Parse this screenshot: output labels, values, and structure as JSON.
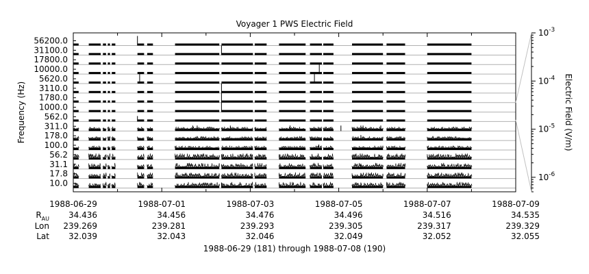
{
  "chart_data": {
    "type": "line",
    "title": "Voyager 1 PWS Electric Field",
    "ylabel": "Frequency (Hz)",
    "y2label": "Electric Field (V/m)",
    "xlim": [
      "1988-06-29",
      "1988-07-09"
    ],
    "x_tick_labels": [
      "1988-06-29",
      "1988-07-01",
      "1988-07-03",
      "1988-07-05",
      "1988-07-07",
      "1988-07-09"
    ],
    "channels_hz": [
      10.0,
      17.8,
      31.1,
      56.2,
      100.0,
      178.0,
      311.0,
      562.0,
      1000.0,
      1780.0,
      3110.0,
      5620.0,
      10000.0,
      17800.0,
      31100.0,
      56200.0
    ],
    "channel_tick_labels": [
      "10.0",
      "17.8",
      "31.1",
      "56.2",
      "100.0",
      "178.0",
      "311.0",
      "562.0",
      "1000.0",
      "1780.0",
      "3110.0",
      "5620.0",
      "10000.0",
      "17800.0",
      "31100.0",
      "56200.0"
    ],
    "y2_scale": "log",
    "y2_range": [
      5e-07,
      0.001
    ],
    "y2_tick_labels": [
      {
        "base": "10",
        "exp": "-3"
      },
      {
        "base": "10",
        "exp": "-4"
      },
      {
        "base": "10",
        "exp": "-5"
      },
      {
        "base": "10",
        "exp": "-6"
      }
    ],
    "data_segments_days": [
      [
        0.0,
        0.12
      ],
      [
        0.35,
        0.62
      ],
      [
        0.67,
        0.74
      ],
      [
        0.78,
        0.83
      ],
      [
        0.87,
        0.95
      ],
      [
        1.45,
        1.6
      ],
      [
        1.67,
        1.8
      ],
      [
        2.3,
        3.3
      ],
      [
        3.35,
        4.06
      ],
      [
        4.1,
        4.37
      ],
      [
        4.65,
        5.25
      ],
      [
        5.35,
        5.62
      ],
      [
        5.65,
        5.88
      ],
      [
        6.3,
        7.0
      ],
      [
        7.08,
        7.5
      ],
      [
        8.0,
        9.0
      ]
    ],
    "spikes": [
      {
        "day": 1.45,
        "channel": "56200.0"
      },
      {
        "day": 3.35,
        "channel": "31100.0"
      },
      {
        "day": 5.56,
        "channel": "10000.0"
      },
      {
        "day": 5.45,
        "channel": "5620.0"
      },
      {
        "day": 1.5,
        "channel": "5620.0"
      },
      {
        "day": 3.35,
        "channel": "3110.0"
      },
      {
        "day": 3.35,
        "channel": "1780.0"
      },
      {
        "day": 3.35,
        "channel": "1000.0"
      },
      {
        "day": 1.45,
        "channel": "562.0"
      },
      {
        "day": 2.7,
        "channel": "311.0"
      },
      {
        "day": 2.8,
        "channel": "311.0"
      },
      {
        "day": 3.55,
        "channel": "311.0"
      },
      {
        "day": 4.9,
        "channel": "311.0"
      },
      {
        "day": 6.05,
        "channel": "311.0"
      },
      {
        "day": 6.5,
        "channel": "311.0"
      },
      {
        "day": 6.55,
        "channel": "311.0"
      },
      {
        "day": 6.95,
        "channel": "311.0"
      },
      {
        "day": 6.5,
        "channel": "178.0"
      },
      {
        "day": 5.55,
        "channel": "100.0"
      },
      {
        "day": 6.5,
        "channel": "31.1"
      },
      {
        "day": 6.5,
        "channel": "17.8"
      },
      {
        "day": 3.35,
        "channel": "10.0"
      },
      {
        "day": 6.5,
        "channel": "10.0"
      }
    ],
    "grid": false
  },
  "info_rows": {
    "labels": [
      {
        "text": "R",
        "sub": "AU"
      },
      {
        "text": "Lon",
        "sub": ""
      },
      {
        "text": "Lat",
        "sub": ""
      }
    ],
    "columns": [
      {
        "r": "34.436",
        "lon": "239.269",
        "lat": "32.039"
      },
      {
        "r": "34.456",
        "lon": "239.281",
        "lat": "32.043"
      },
      {
        "r": "34.476",
        "lon": "239.293",
        "lat": "32.046"
      },
      {
        "r": "34.496",
        "lon": "239.305",
        "lat": "32.049"
      },
      {
        "r": "34.516",
        "lon": "239.317",
        "lat": "32.052"
      },
      {
        "r": "34.535",
        "lon": "239.329",
        "lat": "32.055"
      }
    ]
  },
  "footer": "1988-06-29 (181) through 1988-07-08 (190)"
}
